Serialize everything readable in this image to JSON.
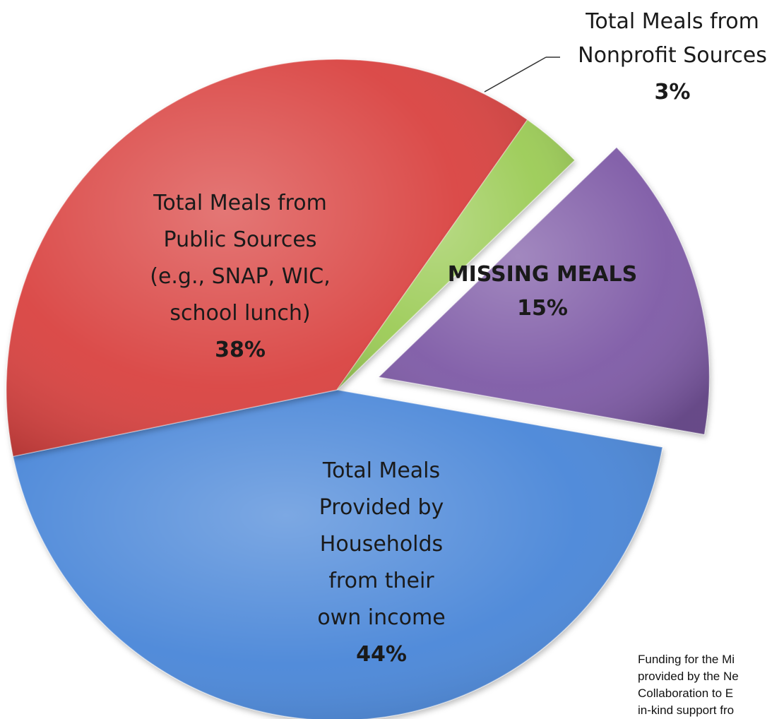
{
  "chart_data": {
    "type": "pie",
    "title": "",
    "slices": [
      {
        "id": "households",
        "label_lines": [
          "Total Meals",
          "Provided by",
          "Households",
          "from their",
          "own income"
        ],
        "label_bold": false,
        "percent_label": "44%",
        "value": 44,
        "color": "#4a86d8"
      },
      {
        "id": "public",
        "label_lines": [
          "Total Meals from",
          "Public Sources",
          "(e.g., SNAP, WIC,",
          "school lunch)"
        ],
        "label_bold": false,
        "percent_label": "38%",
        "value": 38,
        "color": "#d94340"
      },
      {
        "id": "nonprofit",
        "label_lines": [
          "Total Meals from",
          "Nonprofit Sources"
        ],
        "label_bold": false,
        "percent_label": "3%",
        "value": 3,
        "color": "#9bcb54"
      },
      {
        "id": "missing",
        "label_lines": [
          "MISSING MEALS"
        ],
        "label_bold": true,
        "percent_label": "15%",
        "value": 15,
        "color": "#7e5aa6",
        "exploded": true
      }
    ],
    "legend": "none"
  },
  "footnote": {
    "lines": [
      "Funding for the Mi",
      "provided by the Ne",
      "Collaboration to E",
      "in-kind support fro"
    ]
  }
}
